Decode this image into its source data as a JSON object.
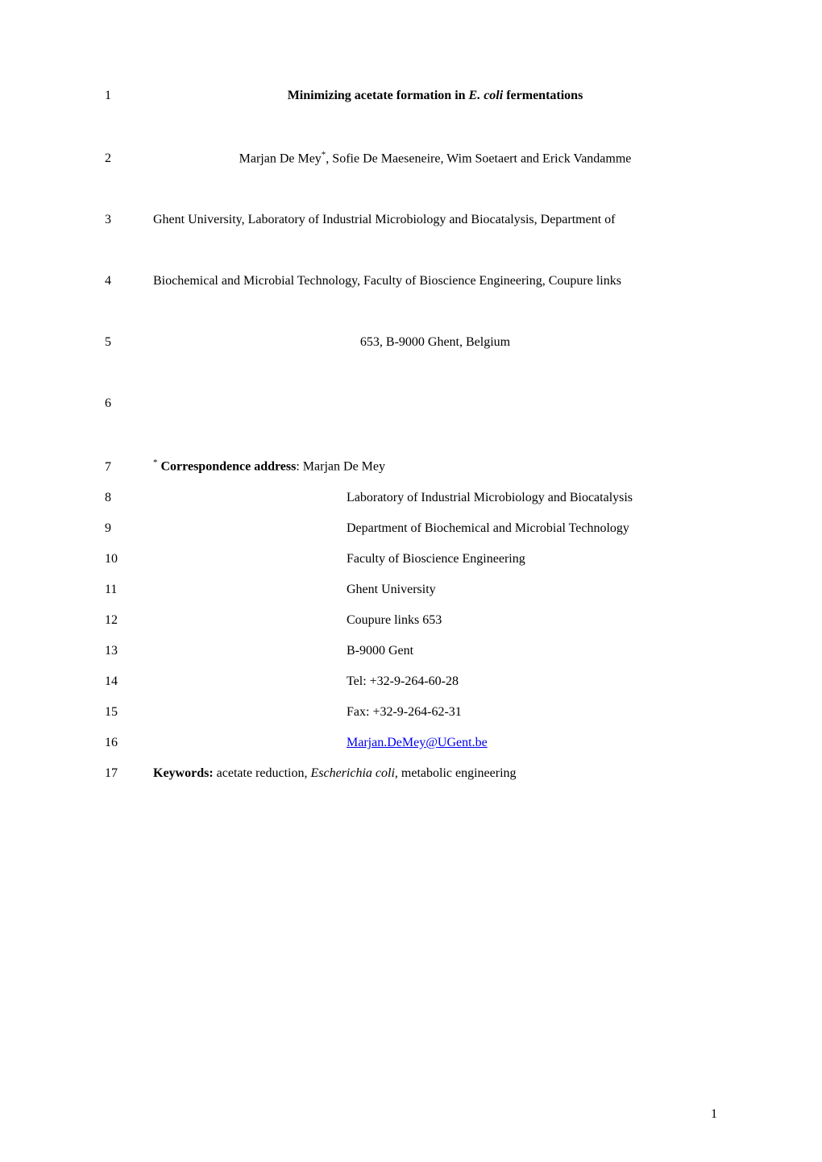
{
  "page": {
    "number": "1",
    "background_color": "#ffffff",
    "text_color": "#000000",
    "link_color": "#0000ee",
    "font_family": "Times New Roman",
    "base_fontsize": 16
  },
  "lines": {
    "l1": {
      "num": "1",
      "text_before": "Minimizing acetate formation in ",
      "text_italic": "E. coli",
      "text_after": " fermentations"
    },
    "l2": {
      "num": "2",
      "text_before": "Marjan De Mey",
      "super": "*",
      "text_after": ", Sofie De Maeseneire, Wim Soetaert and Erick Vandamme"
    },
    "l3": {
      "num": "3",
      "text": "Ghent University, Laboratory of Industrial Microbiology and Biocatalysis, Department of"
    },
    "l4": {
      "num": "4",
      "text": "Biochemical and Microbial Technology, Faculty of Bioscience Engineering, Coupure links"
    },
    "l5": {
      "num": "5",
      "text": "653, B-9000 Ghent, Belgium"
    },
    "l6": {
      "num": "6",
      "text": ""
    },
    "l7": {
      "num": "7",
      "super": "*",
      "bold_text": " Correspondence address",
      "text_after": ":  Marjan De Mey"
    },
    "l8": {
      "num": "8",
      "text": "Laboratory of Industrial Microbiology and Biocatalysis"
    },
    "l9": {
      "num": "9",
      "text": "Department of Biochemical and Microbial Technology"
    },
    "l10": {
      "num": "10",
      "text": "Faculty of Bioscience Engineering"
    },
    "l11": {
      "num": "11",
      "text": "Ghent University"
    },
    "l12": {
      "num": "12",
      "text": "Coupure links 653"
    },
    "l13": {
      "num": "13",
      "text": "B-9000 Gent"
    },
    "l14": {
      "num": "14",
      "text": "Tel: +32-9-264-60-28"
    },
    "l15": {
      "num": "15",
      "text": "Fax: +32-9-264-62-31"
    },
    "l16": {
      "num": "16",
      "link_text": "Marjan.DeMey@UGent.be"
    },
    "l17": {
      "num": "17",
      "bold_text": "Keywords:",
      "text_mid": " acetate reduction, ",
      "italic_text": "Escherichia coli",
      "text_after": ", metabolic engineering"
    }
  }
}
